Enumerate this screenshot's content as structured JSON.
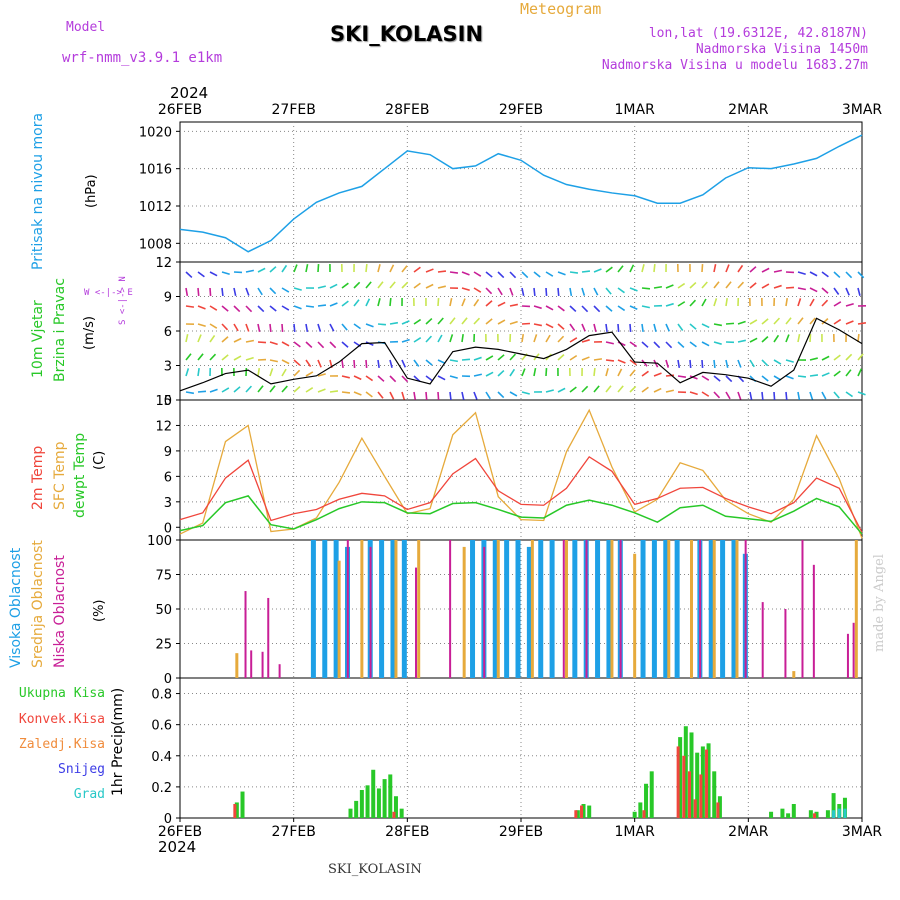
{
  "header": {
    "model_label": "Model",
    "model_name": "wrf-nmm_v3.9.1  e1km",
    "station_title": "SKI_KOLASIN",
    "meteogram_label": "Meteogram",
    "lonlat": "lon,lat (19.6312E, 42.8187N)",
    "altitude": "Nadmorska Visina 1450m",
    "model_altitude": "Nadmorska Visina u modelu 1683.27m",
    "year": "2024",
    "footer_station": "SKI_KOLASIN",
    "credit": "made by Angel"
  },
  "colors": {
    "pressure": "#1ea0e6",
    "temp2m": "#f0463c",
    "sfc": "#e6aa3c",
    "dewpt": "#28c828",
    "high_cloud": "#1ea0e6",
    "mid_cloud": "#e6aa3c",
    "low_cloud": "#c81e96",
    "total_precip": "#28c828",
    "convective": "#f0463c",
    "freezing": "#f08c3c",
    "snow": "#3c3ce6",
    "graupel": "#28c8c8",
    "compass": "#b43cdc"
  },
  "chart_data": [
    {
      "type": "line",
      "panel": "pressure",
      "ylabel_colored": "Pritisak na nivou mora",
      "unit": "(hPa)",
      "ylim": [
        1006,
        1021
      ],
      "yticks": [
        1008,
        1012,
        1016,
        1020
      ],
      "x_ticks": [
        "26FEB",
        "27FEB",
        "28FEB",
        "29FEB",
        "1MAR",
        "2MAR",
        "3MAR"
      ],
      "grid": true,
      "series": [
        {
          "name": "Pritisak na nivou mora",
          "x": [
            0,
            0.2,
            0.4,
            0.6,
            0.8,
            1.0,
            1.2,
            1.4,
            1.6,
            1.8,
            2.0,
            2.2,
            2.4,
            2.6,
            2.8,
            3.0,
            3.2,
            3.4,
            3.6,
            3.8,
            4.0,
            4.2,
            4.4,
            4.6,
            4.8,
            5.0,
            5.2,
            5.4,
            5.6,
            5.8,
            6.0
          ],
          "values": [
            1009.5,
            1009.2,
            1008.6,
            1007.1,
            1008.3,
            1010.6,
            1012.4,
            1013.4,
            1014.1,
            1016.0,
            1017.9,
            1017.5,
            1016.0,
            1016.3,
            1017.6,
            1016.9,
            1015.3,
            1014.3,
            1013.8,
            1013.4,
            1013.1,
            1012.3,
            1012.3,
            1013.2,
            1015.0,
            1016.1,
            1016.0,
            1016.5,
            1017.1,
            1018.4,
            1019.6
          ]
        }
      ]
    },
    {
      "type": "line",
      "panel": "wind",
      "ylabel_colored": "10m Vjetar Brzina i Pravac",
      "unit": "(m/s)",
      "compass": "W <-|-> E",
      "compass_vertical": "S <-|-> N",
      "ylim": [
        0,
        12
      ],
      "yticks": [
        0,
        3,
        6,
        9,
        12
      ],
      "grid": true,
      "series": [
        {
          "name": "Brzina",
          "x": [
            0,
            0.2,
            0.4,
            0.6,
            0.8,
            1.0,
            1.2,
            1.4,
            1.6,
            1.8,
            2.0,
            2.2,
            2.4,
            2.6,
            2.8,
            3.0,
            3.2,
            3.4,
            3.6,
            3.8,
            4.0,
            4.2,
            4.4,
            4.6,
            4.8,
            5.0,
            5.2,
            5.4,
            5.6,
            5.8,
            6.0
          ],
          "values": [
            0.8,
            1.5,
            2.3,
            2.6,
            1.4,
            1.8,
            2.1,
            3.3,
            4.9,
            5.0,
            1.9,
            1.4,
            4.2,
            4.6,
            4.4,
            4.0,
            3.6,
            4.4,
            5.6,
            5.9,
            3.3,
            3.2,
            1.5,
            2.4,
            2.2,
            1.9,
            1.2,
            2.6,
            7.1,
            6.1,
            4.9
          ]
        }
      ]
    },
    {
      "type": "line",
      "panel": "temperature",
      "unit": "(C)",
      "ylim": [
        -1.5,
        15
      ],
      "yticks": [
        0,
        3,
        6,
        9,
        12,
        15
      ],
      "grid": true,
      "series": [
        {
          "name": "2m Temp",
          "x": [
            0,
            0.2,
            0.4,
            0.6,
            0.8,
            1.0,
            1.2,
            1.4,
            1.6,
            1.8,
            2.0,
            2.2,
            2.4,
            2.6,
            2.8,
            3.0,
            3.2,
            3.4,
            3.6,
            3.8,
            4.0,
            4.2,
            4.4,
            4.6,
            4.8,
            5.0,
            5.2,
            5.4,
            5.6,
            5.8,
            6.0
          ],
          "values": [
            0.9,
            1.7,
            5.8,
            7.9,
            0.8,
            1.6,
            2.1,
            3.3,
            4.0,
            3.7,
            2.1,
            2.9,
            6.3,
            8.1,
            4.3,
            2.7,
            2.6,
            4.6,
            8.3,
            6.6,
            2.7,
            3.4,
            4.6,
            4.7,
            3.4,
            2.4,
            1.6,
            2.9,
            5.8,
            4.6,
            -0.6
          ]
        },
        {
          "name": "SFC Temp",
          "x": [
            0,
            0.2,
            0.4,
            0.6,
            0.8,
            1.0,
            1.2,
            1.4,
            1.6,
            1.8,
            2.0,
            2.2,
            2.4,
            2.6,
            2.8,
            3.0,
            3.2,
            3.4,
            3.6,
            3.8,
            4.0,
            4.2,
            4.4,
            4.6,
            4.8,
            5.0,
            5.2,
            5.4,
            5.6,
            5.8,
            6.0
          ],
          "values": [
            -0.8,
            0.5,
            10.1,
            12.0,
            -0.5,
            -0.2,
            1.1,
            5.3,
            10.5,
            6.0,
            1.6,
            2.2,
            10.9,
            13.5,
            3.6,
            0.9,
            0.8,
            8.9,
            13.8,
            7.1,
            1.8,
            3.3,
            7.6,
            6.7,
            3.2,
            1.6,
            0.6,
            3.3,
            10.8,
            5.7,
            -1.3
          ]
        },
        {
          "name": "dewpt Temp",
          "x": [
            0,
            0.2,
            0.4,
            0.6,
            0.8,
            1.0,
            1.2,
            1.4,
            1.6,
            1.8,
            2.0,
            2.2,
            2.4,
            2.6,
            2.8,
            3.0,
            3.2,
            3.4,
            3.6,
            3.8,
            4.0,
            4.2,
            4.4,
            4.6,
            4.8,
            5.0,
            5.2,
            5.4,
            5.6,
            5.8,
            6.0
          ],
          "values": [
            -0.4,
            0.2,
            2.9,
            3.7,
            0.3,
            -0.2,
            0.9,
            2.2,
            3.0,
            2.9,
            1.7,
            1.6,
            2.8,
            2.9,
            2.1,
            1.2,
            1.1,
            2.6,
            3.2,
            2.6,
            1.7,
            0.6,
            2.3,
            2.6,
            1.3,
            1.0,
            0.7,
            1.9,
            3.4,
            2.4,
            -0.8
          ]
        }
      ]
    },
    {
      "type": "bar",
      "panel": "clouds",
      "unit": "(%)",
      "ylim": [
        0,
        100
      ],
      "yticks": [
        0,
        25,
        50,
        75,
        100
      ],
      "grid": true,
      "series": [
        {
          "name": "Visoka Oblacnost",
          "x": [
            1.2,
            1.3,
            1.4,
            1.5,
            1.7,
            1.8,
            1.9,
            2.0,
            2.6,
            2.7,
            2.8,
            2.9,
            3.0,
            3.1,
            3.2,
            3.3,
            3.5,
            3.6,
            3.7,
            3.8,
            3.9,
            4.1,
            4.2,
            4.3,
            4.4,
            4.6,
            4.7,
            4.8,
            4.9,
            5.0
          ],
          "values": [
            100,
            100,
            100,
            95,
            100,
            100,
            100,
            100,
            100,
            100,
            100,
            100,
            100,
            95,
            100,
            100,
            100,
            100,
            100,
            100,
            100,
            100,
            100,
            100,
            100,
            100,
            100,
            100,
            100,
            90
          ]
        },
        {
          "name": "Srednja Oblacnost",
          "x": [
            0.5,
            1.4,
            1.6,
            1.9,
            2.1,
            2.5,
            2.8,
            3.1,
            3.4,
            3.8,
            4.0,
            4.3,
            4.5,
            4.7,
            4.9,
            5.4,
            5.95
          ],
          "values": [
            18,
            85,
            100,
            100,
            100,
            95,
            100,
            100,
            100,
            100,
            90,
            100,
            100,
            100,
            100,
            5,
            100
          ]
        },
        {
          "name": "Niska Oblacnost",
          "x": [
            0.55,
            0.6,
            0.7,
            0.75,
            0.85,
            1.45,
            1.65,
            2.05,
            2.35,
            2.65,
            3.35,
            3.55,
            3.85,
            4.55,
            4.95,
            5.1,
            5.3,
            5.45,
            5.55,
            5.85,
            5.9
          ],
          "values": [
            63,
            20,
            19,
            58,
            10,
            100,
            95,
            80,
            100,
            95,
            100,
            100,
            100,
            100,
            100,
            55,
            50,
            100,
            82,
            32,
            40
          ]
        }
      ]
    },
    {
      "type": "bar",
      "panel": "precip",
      "unit": "(mm)",
      "ylabel": "1hr Precip",
      "ylim": [
        0,
        0.9
      ],
      "yticks": [
        0,
        0.2,
        0.4,
        0.6,
        0.8
      ],
      "x_ticks": [
        "26FEB",
        "27FEB",
        "28FEB",
        "29FEB",
        "1MAR",
        "2MAR",
        "3MAR"
      ],
      "grid": true,
      "series": [
        {
          "name": "Ukupna Kisa",
          "x": [
            0.5,
            0.55,
            1.5,
            1.55,
            1.6,
            1.65,
            1.7,
            1.75,
            1.8,
            1.85,
            1.9,
            1.95,
            3.5,
            3.55,
            3.6,
            4.0,
            4.05,
            4.1,
            4.15,
            4.4,
            4.45,
            4.5,
            4.55,
            4.6,
            4.65,
            4.7,
            4.75,
            5.2,
            5.3,
            5.35,
            5.4,
            5.55,
            5.6,
            5.7,
            5.75,
            5.8,
            5.85
          ],
          "values": [
            0.1,
            0.17,
            0.06,
            0.11,
            0.18,
            0.21,
            0.31,
            0.19,
            0.25,
            0.28,
            0.14,
            0.06,
            0.05,
            0.09,
            0.08,
            0.04,
            0.1,
            0.22,
            0.3,
            0.52,
            0.59,
            0.55,
            0.42,
            0.46,
            0.48,
            0.3,
            0.14,
            0.04,
            0.06,
            0.03,
            0.09,
            0.05,
            0.04,
            0.05,
            0.16,
            0.09,
            0.13
          ]
        },
        {
          "name": "Konvek.Kisa",
          "x": [
            0.5,
            1.9,
            3.5,
            3.55,
            4.1,
            4.4,
            4.45,
            4.5,
            4.55,
            4.6,
            4.65,
            4.75,
            5.6
          ],
          "values": [
            0.09,
            0.04,
            0.05,
            0.08,
            0.05,
            0.46,
            0.4,
            0.3,
            0.12,
            0.28,
            0.44,
            0.1,
            0.03
          ]
        },
        {
          "name": "Zaledj.Kisa",
          "x": [],
          "values": []
        },
        {
          "name": "Snijeg",
          "x": [
            5.75,
            5.8
          ],
          "values": [
            0.03,
            0.02
          ]
        },
        {
          "name": "Grad",
          "x": [
            5.75,
            5.8,
            5.85
          ],
          "values": [
            0.05,
            0.06,
            0.06
          ]
        }
      ]
    }
  ],
  "labels": {
    "temp_2m": "2m Temp",
    "temp_sfc": "SFC Temp",
    "temp_dew": "dewpt Temp",
    "cloud_high": "Visoka Oblacnost",
    "cloud_mid": "Srednja Oblacnost",
    "cloud_low": "Niska Oblacnost",
    "precip_total": "Ukupna Kisa",
    "precip_conv": "Konvek.Kisa",
    "precip_freeze": "Zaledj.Kisa",
    "precip_snow": "Snijeg",
    "precip_grad": "Grad",
    "precip_axis": "1hr Precip"
  }
}
